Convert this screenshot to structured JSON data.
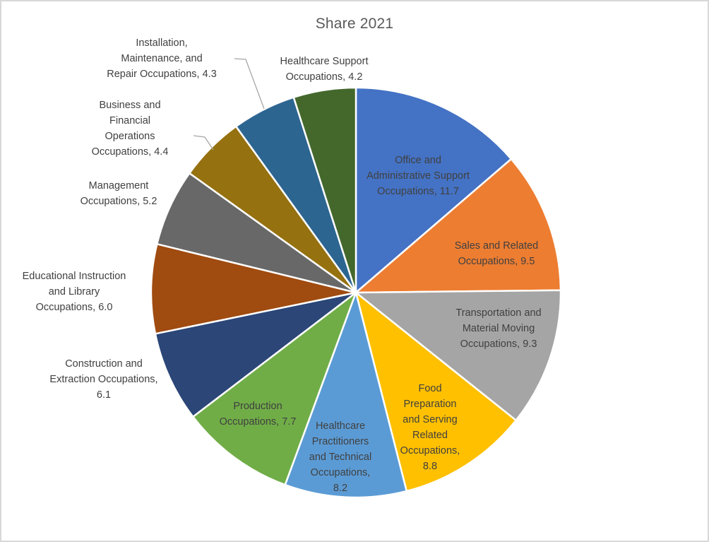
{
  "chart_data": {
    "type": "pie",
    "title": "Share 2021",
    "title_color": "#595959",
    "label_color": "#404040",
    "leader_line_color": "#a6a6a6",
    "slice_border_color": "#ffffff",
    "legend": "none",
    "series": [
      {
        "name": "Office and Administrative Support Occupations",
        "value": 11.7,
        "color": "#4472C4",
        "label_lines": [
          "Office and",
          "Administrative Support",
          "Occupations, 11.7"
        ],
        "label_placement": "inside"
      },
      {
        "name": "Sales and Related Occupations",
        "value": 9.5,
        "color": "#ED7D31",
        "label_lines": [
          "Sales and Related",
          "Occupations, 9.5"
        ],
        "label_placement": "inside"
      },
      {
        "name": "Transportation and Material Moving Occupations",
        "value": 9.3,
        "color": "#A5A5A5",
        "label_lines": [
          "Transportation and",
          "Material Moving",
          "Occupations, 9.3"
        ],
        "label_placement": "inside"
      },
      {
        "name": "Food Preparation and Serving Related Occupations",
        "value": 8.8,
        "color": "#FFC000",
        "label_lines": [
          "Food",
          "Preparation",
          "and Serving",
          "Related",
          "Occupations,",
          "8.8"
        ],
        "label_placement": "inside"
      },
      {
        "name": "Healthcare Practitioners and Technical Occupations",
        "value": 8.2,
        "color": "#5B9BD5",
        "label_lines": [
          "Healthcare",
          "Practitioners",
          "and Technical",
          "Occupations,",
          "8.2"
        ],
        "label_placement": "inside"
      },
      {
        "name": "Production Occupations",
        "value": 7.7,
        "color": "#70AD47",
        "label_lines": [
          "Production",
          "Occupations, 7.7"
        ],
        "label_placement": "inside"
      },
      {
        "name": "Construction and Extraction Occupations",
        "value": 6.1,
        "color": "#2B4677",
        "label_lines": [
          "Construction and",
          "Extraction Occupations,",
          "6.1"
        ],
        "label_placement": "outside"
      },
      {
        "name": "Educational Instruction and Library Occupations",
        "value": 6.0,
        "color": "#A04B10",
        "label_lines": [
          "Educational Instruction",
          "and Library",
          "Occupations, 6.0"
        ],
        "label_placement": "outside"
      },
      {
        "name": "Management Occupations",
        "value": 5.2,
        "color": "#686868",
        "label_lines": [
          "Management",
          "Occupations, 5.2"
        ],
        "label_placement": "outside"
      },
      {
        "name": "Business and Financial Operations Occupations",
        "value": 4.4,
        "color": "#957110",
        "label_lines": [
          "Business and",
          "Financial",
          "Operations",
          "Occupations, 4.4"
        ],
        "label_placement": "outside"
      },
      {
        "name": "Installation, Maintenance, and Repair Occupations",
        "value": 4.3,
        "color": "#2D6591",
        "label_lines": [
          "Installation,",
          "Maintenance, and",
          "Repair Occupations, 4.3"
        ],
        "label_placement": "outside"
      },
      {
        "name": "Healthcare Support Occupations",
        "value": 4.2,
        "color": "#44682C",
        "label_lines": [
          "Healthcare Support",
          "Occupations, 4.2"
        ],
        "label_placement": "outside"
      }
    ]
  }
}
